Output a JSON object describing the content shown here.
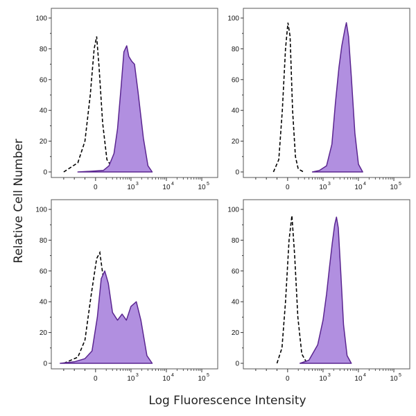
{
  "figure": {
    "ylabel": "Relative Cell Number",
    "xlabel": "Log Fluorescence Intensity"
  },
  "colors": {
    "fill": "#b18fe0",
    "stroke": "#5a2590",
    "control": "#000000",
    "frame": "#555555"
  },
  "chart_data": [
    {
      "type": "area",
      "panel": "top-left",
      "y_ticks": [
        "0",
        "20",
        "40",
        "60",
        "80",
        "100"
      ],
      "x_ticks": [
        {
          "base": "0",
          "exp": ""
        },
        {
          "base": "10",
          "exp": "3"
        },
        {
          "base": "10",
          "exp": "4"
        },
        {
          "base": "10",
          "exp": "5"
        }
      ],
      "ylim": [
        0,
        100
      ],
      "series": [
        {
          "style": "dashed",
          "x": [
            -9,
            -5,
            -3,
            -1.5,
            -0.4,
            0.3,
            1.0,
            2.0,
            3.2,
            5,
            7
          ],
          "y": [
            0,
            6,
            20,
            50,
            80,
            88,
            68,
            32,
            8,
            2,
            0
          ]
        },
        {
          "style": "filled",
          "x": [
            -5,
            -1,
            2.2,
            3.8,
            5.2,
            6.2,
            7.2,
            8.0,
            8.8,
            9.4,
            10.2,
            11.0,
            12.0,
            13.5,
            14.8,
            16
          ],
          "y": [
            0,
            0.5,
            1,
            4,
            12,
            28,
            55,
            78,
            82,
            75,
            72,
            70,
            52,
            22,
            4,
            0
          ]
        }
      ]
    },
    {
      "type": "area",
      "panel": "top-right",
      "y_ticks": [
        "0",
        "20",
        "40",
        "60",
        "80",
        "100"
      ],
      "x_ticks": [
        {
          "base": "0",
          "exp": ""
        },
        {
          "base": "10",
          "exp": "3"
        },
        {
          "base": "10",
          "exp": "4"
        },
        {
          "base": "10",
          "exp": "5"
        }
      ],
      "ylim": [
        0,
        100
      ],
      "series": [
        {
          "style": "dashed",
          "x": [
            -4,
            -2.5,
            -1.5,
            -0.6,
            0.1,
            0.7,
            1.4,
            2.2,
            3,
            4.5
          ],
          "y": [
            0,
            8,
            40,
            80,
            97,
            88,
            40,
            10,
            2,
            0
          ]
        },
        {
          "style": "filled",
          "x": [
            7,
            9,
            11,
            12.5,
            13.5,
            14.5,
            15.3,
            15.8,
            16.2,
            16.6,
            17.2,
            18,
            19,
            20,
            21.2
          ],
          "y": [
            0,
            1,
            4,
            18,
            45,
            68,
            82,
            88,
            93,
            97,
            88,
            62,
            25,
            5,
            0
          ]
        }
      ]
    },
    {
      "type": "area",
      "panel": "bottom-left",
      "y_ticks": [
        "0",
        "20",
        "40",
        "60",
        "80",
        "100"
      ],
      "x_ticks": [
        {
          "base": "0",
          "exp": ""
        },
        {
          "base": "10",
          "exp": "3"
        },
        {
          "base": "10",
          "exp": "4"
        },
        {
          "base": "10",
          "exp": "5"
        }
      ],
      "ylim": [
        0,
        100
      ],
      "series": [
        {
          "style": "dashed",
          "x": [
            -9,
            -5,
            -3,
            -1.2,
            0.3,
            1.2,
            2.2,
            3.2,
            4.2,
            5.2,
            6.3
          ],
          "y": [
            0,
            4,
            15,
            45,
            68,
            72,
            55,
            38,
            22,
            8,
            0
          ]
        },
        {
          "style": "filled",
          "x": [
            -10,
            -6,
            -3,
            -1,
            0.5,
            1.6,
            2.6,
            3.6,
            4.8,
            6.2,
            7.5,
            8.7,
            10,
            11.5,
            12.8,
            14.5,
            16
          ],
          "y": [
            0,
            1,
            3,
            8,
            30,
            55,
            60,
            52,
            33,
            28,
            32,
            28,
            37,
            40,
            28,
            5,
            0
          ]
        }
      ]
    },
    {
      "type": "area",
      "panel": "bottom-right",
      "y_ticks": [
        "0",
        "20",
        "40",
        "60",
        "80",
        "100"
      ],
      "x_ticks": [
        {
          "base": "0",
          "exp": ""
        },
        {
          "base": "10",
          "exp": "3"
        },
        {
          "base": "10",
          "exp": "4"
        },
        {
          "base": "10",
          "exp": "5"
        }
      ],
      "ylim": [
        0,
        100
      ],
      "series": [
        {
          "style": "dashed",
          "x": [
            -3,
            -1.6,
            -0.6,
            0.4,
            1.2,
            2.0,
            2.9,
            4.0,
            5.5
          ],
          "y": [
            0,
            10,
            40,
            80,
            96,
            70,
            30,
            6,
            0
          ]
        },
        {
          "style": "filled",
          "x": [
            3.5,
            6,
            8.5,
            10,
            11,
            11.8,
            12.6,
            13.3,
            13.8,
            14.3,
            15,
            15.8,
            16.8,
            18
          ],
          "y": [
            0,
            2,
            12,
            28,
            45,
            62,
            78,
            90,
            95,
            88,
            60,
            25,
            5,
            0
          ]
        }
      ]
    }
  ]
}
